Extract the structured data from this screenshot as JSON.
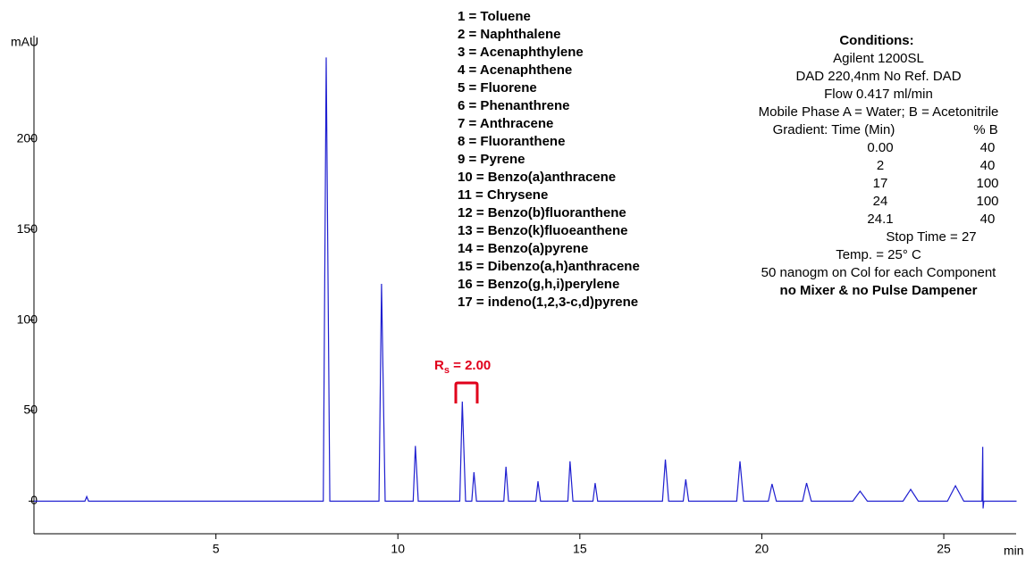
{
  "chart_data": {
    "type": "line",
    "x_label": "min",
    "y_label": "mAU",
    "xlim": [
      0,
      27
    ],
    "ylim": [
      -18,
      257
    ],
    "xticks": [
      5,
      10,
      15,
      20,
      25
    ],
    "yticks": [
      0,
      50,
      100,
      150,
      200
    ],
    "series": [
      {
        "color": "#1f1fd0",
        "x": [
          0,
          1.4,
          1.45,
          1.5,
          7.95,
          8.03,
          8.13,
          9.48,
          9.55,
          9.65,
          10.42,
          10.48,
          10.56,
          11.7,
          11.77,
          11.86,
          12.03,
          12.09,
          12.16,
          12.91,
          12.97,
          13.04,
          13.79,
          13.85,
          13.92,
          14.67,
          14.73,
          14.81,
          15.36,
          15.42,
          15.49,
          17.27,
          17.35,
          17.44,
          17.84,
          17.91,
          17.99,
          19.31,
          19.4,
          19.5,
          20.18,
          20.28,
          20.4,
          21.12,
          21.23,
          21.36,
          22.5,
          22.7,
          22.9,
          23.88,
          24.09,
          24.3,
          25.1,
          25.32,
          25.55,
          26.05,
          26.07,
          26.08,
          26.1,
          27
        ],
        "values": [
          0,
          0,
          2.5,
          0,
          0,
          245,
          0,
          0,
          120,
          0,
          0,
          30.5,
          0,
          0,
          55,
          0,
          0,
          16,
          0,
          0,
          19,
          0,
          0,
          11,
          0,
          0,
          22,
          0,
          0,
          10,
          0,
          0,
          23,
          0,
          0,
          12,
          0,
          0,
          22,
          0,
          0,
          9.5,
          0,
          0,
          10,
          0,
          0,
          5.5,
          0,
          0,
          6.5,
          0,
          0,
          8.5,
          0,
          0,
          30,
          -4,
          0,
          0
        ]
      }
    ],
    "annotation": {
      "main": "R",
      "sub": "s",
      "rest": " = 2.00",
      "color": "#e0001b"
    },
    "compounds": [
      "1 = Toluene",
      "2 = Naphthalene",
      "3 = Acenaphthylene",
      "4 = Acenaphthene",
      "5 = Fluorene",
      "6 = Phenanthrene",
      "7 = Anthracene",
      "8 = Fluoranthene",
      "9 = Pyrene",
      "10 = Benzo(a)anthracene",
      "11 = Chrysene",
      "12 = Benzo(b)fluoranthene",
      "13 = Benzo(k)fluoeanthene",
      "14 = Benzo(a)pyrene",
      "15 = Dibenzo(a,h)anthracene",
      "16 = Benzo(g,h,i)perylene",
      "17 = indeno(1,2,3-c,d)pyrene"
    ],
    "conditions": {
      "title": "Conditions:",
      "lines": [
        "Agilent 1200SL",
        "DAD 220,4nm No Ref. DAD",
        "Flow 0.417 ml/min",
        "Mobile Phase A = Water; B = Acetonitrile"
      ],
      "gradient_header": [
        "Gradient:  Time (Min)",
        "% B"
      ],
      "gradient_rows": [
        [
          "0.00",
          "40"
        ],
        [
          "2",
          "40"
        ],
        [
          "17",
          "100"
        ],
        [
          "24",
          "100"
        ],
        [
          "24.1",
          "40"
        ]
      ],
      "stop_time": "Stop Time = 27",
      "footer": [
        "Temp. = 25° C",
        "50 nanogm on Col for each Component"
      ],
      "bold_line": "no Mixer & no Pulse Dampener"
    }
  }
}
